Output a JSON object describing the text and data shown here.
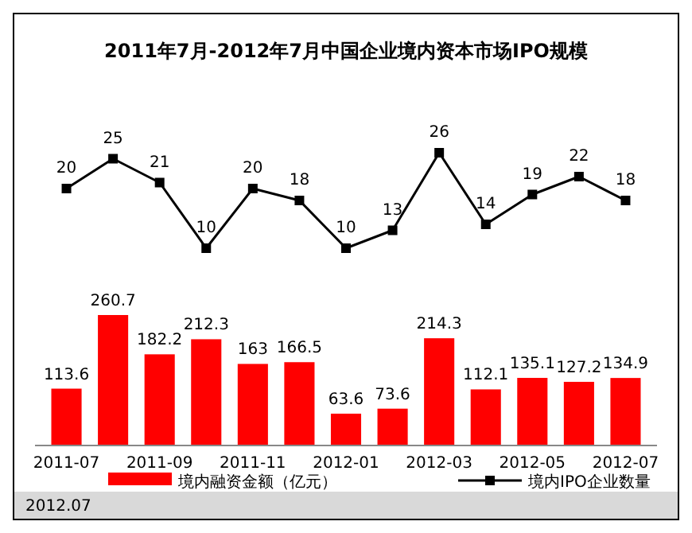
{
  "chart_data": [
    {
      "type": "line",
      "title": "2011年7月-2012年7月中国企业境内资本市场IPO规模",
      "categories": [
        "2011-07",
        null,
        "2011-09",
        null,
        "2011-11",
        null,
        "2012-01",
        null,
        "2012-03",
        null,
        "2012-05",
        null,
        "2012-07"
      ],
      "tick_labels": false,
      "series": [
        {
          "name": "境内IPO企业数量",
          "color": "#000000",
          "values": [
            20,
            25,
            21,
            10,
            20,
            18,
            10,
            13,
            26,
            14,
            19,
            22,
            18
          ]
        }
      ],
      "marker": "square",
      "data_labels": true,
      "legend": "bottom"
    },
    {
      "type": "bar",
      "categories": [
        "2011-07",
        null,
        "2011-09",
        null,
        "2011-11",
        null,
        "2012-01",
        null,
        "2012-03",
        null,
        "2012-05",
        null,
        "2012-07"
      ],
      "series": [
        {
          "name": "境内融资金额（亿元）",
          "color": "#ff0000",
          "values": [
            113.6,
            260.7,
            182.2,
            212.3,
            163.0,
            166.5,
            63.6,
            73.6,
            214.3,
            112.1,
            135.1,
            127.2,
            134.9
          ]
        }
      ],
      "data_labels": true,
      "legend": "bottom",
      "annotations": [
        "2012.07"
      ]
    }
  ]
}
